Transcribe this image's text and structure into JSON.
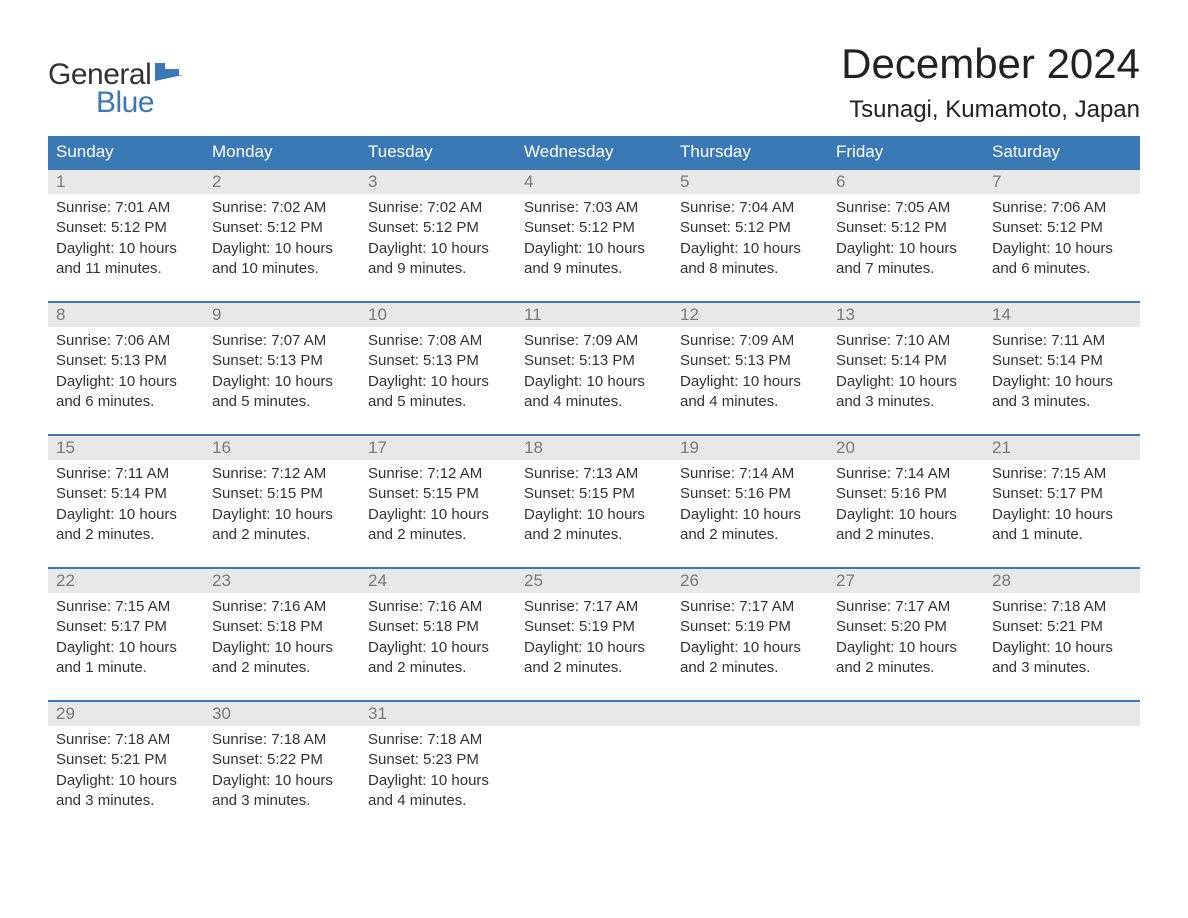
{
  "logo": {
    "text1": "General",
    "text2": "Blue",
    "flag_color": "#3a78b6"
  },
  "title": "December 2024",
  "location": "Tsunagi, Kumamoto, Japan",
  "colors": {
    "header_bg": "#3a78b6",
    "header_text": "#ffffff",
    "daynum_bg": "#e8e8e8",
    "daynum_text": "#7a7a7a",
    "body_text": "#333333",
    "row_border": "#3a78b6",
    "background": "#ffffff"
  },
  "typography": {
    "title_fontsize": 42,
    "location_fontsize": 24,
    "weekday_fontsize": 17,
    "daynum_fontsize": 17,
    "detail_fontsize": 15,
    "font_family": "Arial"
  },
  "weekdays": [
    "Sunday",
    "Monday",
    "Tuesday",
    "Wednesday",
    "Thursday",
    "Friday",
    "Saturday"
  ],
  "weeks": [
    {
      "days": [
        {
          "num": "1",
          "sunrise": "Sunrise: 7:01 AM",
          "sunset": "Sunset: 5:12 PM",
          "daylight": "Daylight: 10 hours and 11 minutes."
        },
        {
          "num": "2",
          "sunrise": "Sunrise: 7:02 AM",
          "sunset": "Sunset: 5:12 PM",
          "daylight": "Daylight: 10 hours and 10 minutes."
        },
        {
          "num": "3",
          "sunrise": "Sunrise: 7:02 AM",
          "sunset": "Sunset: 5:12 PM",
          "daylight": "Daylight: 10 hours and 9 minutes."
        },
        {
          "num": "4",
          "sunrise": "Sunrise: 7:03 AM",
          "sunset": "Sunset: 5:12 PM",
          "daylight": "Daylight: 10 hours and 9 minutes."
        },
        {
          "num": "5",
          "sunrise": "Sunrise: 7:04 AM",
          "sunset": "Sunset: 5:12 PM",
          "daylight": "Daylight: 10 hours and 8 minutes."
        },
        {
          "num": "6",
          "sunrise": "Sunrise: 7:05 AM",
          "sunset": "Sunset: 5:12 PM",
          "daylight": "Daylight: 10 hours and 7 minutes."
        },
        {
          "num": "7",
          "sunrise": "Sunrise: 7:06 AM",
          "sunset": "Sunset: 5:12 PM",
          "daylight": "Daylight: 10 hours and 6 minutes."
        }
      ]
    },
    {
      "days": [
        {
          "num": "8",
          "sunrise": "Sunrise: 7:06 AM",
          "sunset": "Sunset: 5:13 PM",
          "daylight": "Daylight: 10 hours and 6 minutes."
        },
        {
          "num": "9",
          "sunrise": "Sunrise: 7:07 AM",
          "sunset": "Sunset: 5:13 PM",
          "daylight": "Daylight: 10 hours and 5 minutes."
        },
        {
          "num": "10",
          "sunrise": "Sunrise: 7:08 AM",
          "sunset": "Sunset: 5:13 PM",
          "daylight": "Daylight: 10 hours and 5 minutes."
        },
        {
          "num": "11",
          "sunrise": "Sunrise: 7:09 AM",
          "sunset": "Sunset: 5:13 PM",
          "daylight": "Daylight: 10 hours and 4 minutes."
        },
        {
          "num": "12",
          "sunrise": "Sunrise: 7:09 AM",
          "sunset": "Sunset: 5:13 PM",
          "daylight": "Daylight: 10 hours and 4 minutes."
        },
        {
          "num": "13",
          "sunrise": "Sunrise: 7:10 AM",
          "sunset": "Sunset: 5:14 PM",
          "daylight": "Daylight: 10 hours and 3 minutes."
        },
        {
          "num": "14",
          "sunrise": "Sunrise: 7:11 AM",
          "sunset": "Sunset: 5:14 PM",
          "daylight": "Daylight: 10 hours and 3 minutes."
        }
      ]
    },
    {
      "days": [
        {
          "num": "15",
          "sunrise": "Sunrise: 7:11 AM",
          "sunset": "Sunset: 5:14 PM",
          "daylight": "Daylight: 10 hours and 2 minutes."
        },
        {
          "num": "16",
          "sunrise": "Sunrise: 7:12 AM",
          "sunset": "Sunset: 5:15 PM",
          "daylight": "Daylight: 10 hours and 2 minutes."
        },
        {
          "num": "17",
          "sunrise": "Sunrise: 7:12 AM",
          "sunset": "Sunset: 5:15 PM",
          "daylight": "Daylight: 10 hours and 2 minutes."
        },
        {
          "num": "18",
          "sunrise": "Sunrise: 7:13 AM",
          "sunset": "Sunset: 5:15 PM",
          "daylight": "Daylight: 10 hours and 2 minutes."
        },
        {
          "num": "19",
          "sunrise": "Sunrise: 7:14 AM",
          "sunset": "Sunset: 5:16 PM",
          "daylight": "Daylight: 10 hours and 2 minutes."
        },
        {
          "num": "20",
          "sunrise": "Sunrise: 7:14 AM",
          "sunset": "Sunset: 5:16 PM",
          "daylight": "Daylight: 10 hours and 2 minutes."
        },
        {
          "num": "21",
          "sunrise": "Sunrise: 7:15 AM",
          "sunset": "Sunset: 5:17 PM",
          "daylight": "Daylight: 10 hours and 1 minute."
        }
      ]
    },
    {
      "days": [
        {
          "num": "22",
          "sunrise": "Sunrise: 7:15 AM",
          "sunset": "Sunset: 5:17 PM",
          "daylight": "Daylight: 10 hours and 1 minute."
        },
        {
          "num": "23",
          "sunrise": "Sunrise: 7:16 AM",
          "sunset": "Sunset: 5:18 PM",
          "daylight": "Daylight: 10 hours and 2 minutes."
        },
        {
          "num": "24",
          "sunrise": "Sunrise: 7:16 AM",
          "sunset": "Sunset: 5:18 PM",
          "daylight": "Daylight: 10 hours and 2 minutes."
        },
        {
          "num": "25",
          "sunrise": "Sunrise: 7:17 AM",
          "sunset": "Sunset: 5:19 PM",
          "daylight": "Daylight: 10 hours and 2 minutes."
        },
        {
          "num": "26",
          "sunrise": "Sunrise: 7:17 AM",
          "sunset": "Sunset: 5:19 PM",
          "daylight": "Daylight: 10 hours and 2 minutes."
        },
        {
          "num": "27",
          "sunrise": "Sunrise: 7:17 AM",
          "sunset": "Sunset: 5:20 PM",
          "daylight": "Daylight: 10 hours and 2 minutes."
        },
        {
          "num": "28",
          "sunrise": "Sunrise: 7:18 AM",
          "sunset": "Sunset: 5:21 PM",
          "daylight": "Daylight: 10 hours and 3 minutes."
        }
      ]
    },
    {
      "days": [
        {
          "num": "29",
          "sunrise": "Sunrise: 7:18 AM",
          "sunset": "Sunset: 5:21 PM",
          "daylight": "Daylight: 10 hours and 3 minutes."
        },
        {
          "num": "30",
          "sunrise": "Sunrise: 7:18 AM",
          "sunset": "Sunset: 5:22 PM",
          "daylight": "Daylight: 10 hours and 3 minutes."
        },
        {
          "num": "31",
          "sunrise": "Sunrise: 7:18 AM",
          "sunset": "Sunset: 5:23 PM",
          "daylight": "Daylight: 10 hours and 4 minutes."
        },
        null,
        null,
        null,
        null
      ]
    }
  ]
}
